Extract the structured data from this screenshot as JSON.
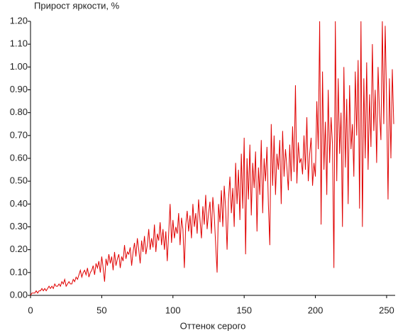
{
  "chart_data": {
    "type": "line",
    "title": "Прирост яркости, %",
    "x_label": "Оттенок серого",
    "xlim": [
      0,
      256
    ],
    "xticks": [
      0,
      50,
      100,
      150,
      200,
      250
    ],
    "ylim": [
      0,
      1.2
    ],
    "yticks": [
      {
        "value": 0,
        "label": "0.00"
      },
      {
        "value": 0.1,
        "label": "0.10"
      },
      {
        "value": 0.2,
        "label": "0.20"
      },
      {
        "value": 0.3,
        "label": "0.30"
      },
      {
        "value": 0.4,
        "label": "0.40"
      },
      {
        "value": 0.5,
        "label": "0.50"
      },
      {
        "value": 0.6,
        "label": "0.60"
      },
      {
        "value": 0.7,
        "label": "0.70"
      },
      {
        "value": 0.8,
        "label": "0.80"
      },
      {
        "value": 0.9,
        "label": "0.90"
      },
      {
        "value": 1.0,
        "label": "1.00"
      },
      {
        "value": 1.1,
        "label": "1.10"
      },
      {
        "value": 1.2,
        "label": "1.20"
      }
    ],
    "grid": false,
    "color": "#e00000",
    "x": [
      0,
      1,
      2,
      3,
      4,
      5,
      6,
      7,
      8,
      9,
      10,
      11,
      12,
      13,
      14,
      15,
      16,
      17,
      18,
      19,
      20,
      21,
      22,
      23,
      24,
      25,
      26,
      27,
      28,
      29,
      30,
      31,
      32,
      33,
      34,
      35,
      36,
      37,
      38,
      39,
      40,
      41,
      42,
      43,
      44,
      45,
      46,
      47,
      48,
      49,
      50,
      51,
      52,
      53,
      54,
      55,
      56,
      57,
      58,
      59,
      60,
      61,
      62,
      63,
      64,
      65,
      66,
      67,
      68,
      69,
      70,
      71,
      72,
      73,
      74,
      75,
      76,
      77,
      78,
      79,
      80,
      81,
      82,
      83,
      84,
      85,
      86,
      87,
      88,
      89,
      90,
      91,
      92,
      93,
      94,
      95,
      96,
      97,
      98,
      99,
      100,
      101,
      102,
      103,
      104,
      105,
      106,
      107,
      108,
      109,
      110,
      111,
      112,
      113,
      114,
      115,
      116,
      117,
      118,
      119,
      120,
      121,
      122,
      123,
      124,
      125,
      126,
      127,
      128,
      129,
      130,
      131,
      132,
      133,
      134,
      135,
      136,
      137,
      138,
      139,
      140,
      141,
      142,
      143,
      144,
      145,
      146,
      147,
      148,
      149,
      150,
      151,
      152,
      153,
      154,
      155,
      156,
      157,
      158,
      159,
      160,
      161,
      162,
      163,
      164,
      165,
      166,
      167,
      168,
      169,
      170,
      171,
      172,
      173,
      174,
      175,
      176,
      177,
      178,
      179,
      180,
      181,
      182,
      183,
      184,
      185,
      186,
      187,
      188,
      189,
      190,
      191,
      192,
      193,
      194,
      195,
      196,
      197,
      198,
      199,
      200,
      201,
      202,
      203,
      204,
      205,
      206,
      207,
      208,
      209,
      210,
      211,
      212,
      213,
      214,
      215,
      216,
      217,
      218,
      219,
      220,
      221,
      222,
      223,
      224,
      225,
      226,
      227,
      228,
      229,
      230,
      231,
      232,
      233,
      234,
      235,
      236,
      237,
      238,
      239,
      240,
      241,
      242,
      243,
      244,
      245,
      246,
      247,
      248,
      249,
      250,
      251,
      252,
      253,
      254,
      255
    ],
    "values": [
      0,
      0.01,
      0.01,
      0.01,
      0.02,
      0.01,
      0.02,
      0.02,
      0.03,
      0.02,
      0.03,
      0.02,
      0.03,
      0.04,
      0.03,
      0.04,
      0.03,
      0.05,
      0.04,
      0.04,
      0.05,
      0.04,
      0.06,
      0.05,
      0.07,
      0.04,
      0.05,
      0.06,
      0.05,
      0.05,
      0.07,
      0.06,
      0.08,
      0.07,
      0.09,
      0.11,
      0.08,
      0.1,
      0.11,
      0.09,
      0.12,
      0.08,
      0.1,
      0.11,
      0.13,
      0.09,
      0.14,
      0.12,
      0.15,
      0.1,
      0.17,
      0.12,
      0.06,
      0.16,
      0.13,
      0.18,
      0.14,
      0.17,
      0.11,
      0.19,
      0.13,
      0.16,
      0.18,
      0.12,
      0.17,
      0.15,
      0.22,
      0.16,
      0.19,
      0.18,
      0.21,
      0.13,
      0.19,
      0.23,
      0.17,
      0.25,
      0.2,
      0.14,
      0.24,
      0.19,
      0.26,
      0.18,
      0.22,
      0.29,
      0.2,
      0.25,
      0.21,
      0.31,
      0.19,
      0.27,
      0.24,
      0.32,
      0.22,
      0.29,
      0.2,
      0.28,
      0.15,
      0.27,
      0.4,
      0.23,
      0.33,
      0.25,
      0.3,
      0.27,
      0.36,
      0.22,
      0.34,
      0.29,
      0.12,
      0.31,
      0.37,
      0.28,
      0.35,
      0.25,
      0.4,
      0.3,
      0.36,
      0.27,
      0.42,
      0.33,
      0.25,
      0.39,
      0.31,
      0.44,
      0.29,
      0.36,
      0.41,
      0.27,
      0.43,
      0.35,
      0.22,
      0.1,
      0.4,
      0.32,
      0.46,
      0.3,
      0.48,
      0.38,
      0.2,
      0.42,
      0.52,
      0.36,
      0.47,
      0.3,
      0.58,
      0.4,
      0.55,
      0.33,
      0.62,
      0.38,
      0.69,
      0.18,
      0.6,
      0.42,
      0.66,
      0.35,
      0.58,
      0.47,
      0.63,
      0.28,
      0.56,
      0.44,
      0.68,
      0.36,
      0.6,
      0.5,
      0.65,
      0.4,
      0.22,
      0.75,
      0.48,
      0.7,
      0.44,
      0.62,
      0.55,
      0.68,
      0.4,
      0.72,
      0.52,
      0.64,
      0.56,
      0.46,
      0.66,
      0.5,
      0.74,
      0.54,
      0.92,
      0.49,
      0.67,
      0.58,
      0.6,
      0.53,
      0.7,
      0.55,
      0.78,
      0.5,
      0.62,
      0.69,
      0.48,
      0.58,
      0.52,
      0.85,
      0.64,
      1.2,
      0.31,
      0.98,
      0.55,
      0.76,
      0.44,
      0.9,
      0.58,
      0.78,
      0.66,
      0.12,
      1.2,
      0.5,
      0.95,
      0.62,
      0.8,
      0.3,
      1.0,
      0.56,
      0.86,
      0.4,
      0.92,
      0.64,
      0.75,
      0.52,
      0.98,
      0.7,
      1.03,
      0.38,
      1.2,
      0.3,
      0.95,
      0.6,
      1.02,
      0.55,
      0.88,
      0.65,
      1.1,
      0.72,
      0.9,
      0.58,
      1.0,
      0.8,
      0.68,
      1.2,
      0.75,
      1.18,
      0.85,
      0.42,
      0.95,
      0.6,
      0.99,
      0.75
    ]
  }
}
